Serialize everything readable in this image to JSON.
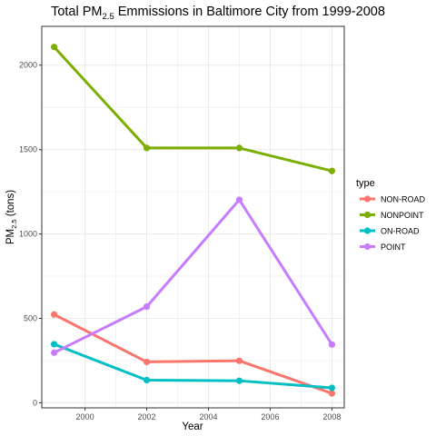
{
  "chart_data": {
    "type": "line",
    "title_main": "Total PM",
    "title_sub": "2.5",
    "title_rest": " Emmissions in Baltimore City from 1999-2008",
    "xlabel": "Year",
    "ylabel_main": "PM",
    "ylabel_sub": "2.5",
    "ylabel_rest": " (tons)",
    "x": [
      1999,
      2002,
      2005,
      2008
    ],
    "xlim": [
      1998.6,
      2008.4
    ],
    "ylim": [
      -30,
      2230
    ],
    "x_ticks": [
      2000,
      2002,
      2004,
      2006,
      2008
    ],
    "y_ticks": [
      0,
      500,
      1000,
      1500,
      2000
    ],
    "grid": true,
    "legend_title": "type",
    "legend_position": "right",
    "series": [
      {
        "name": "NON-ROAD",
        "color": "#F8766D",
        "values": [
          522.9,
          242.1,
          248.9,
          55.8
        ]
      },
      {
        "name": "NONPOINT",
        "color": "#7CAE00",
        "values": [
          2107.6,
          1509.5,
          1509.5,
          1373.2
        ]
      },
      {
        "name": "ON-ROAD",
        "color": "#00BFC4",
        "values": [
          346.8,
          134.3,
          130.4,
          88.3
        ]
      },
      {
        "name": "POINT",
        "color": "#C77CFF",
        "values": [
          296.8,
          569.3,
          1202.5,
          344.98
        ]
      }
    ]
  }
}
